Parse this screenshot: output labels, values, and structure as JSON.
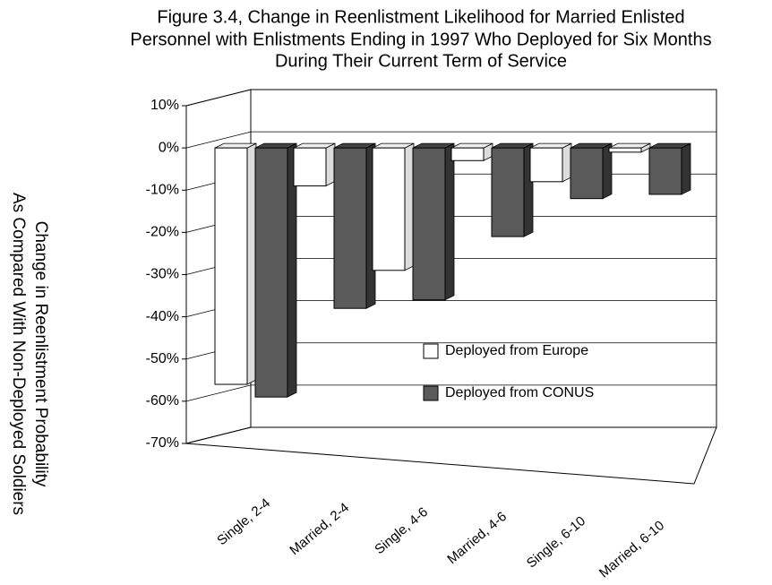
{
  "chart_data": {
    "type": "bar",
    "title": [
      "Figure 3.4, Change in Reenlistment Likelihood for Married Enlisted",
      "Personnel with Enlistments Ending in 1997 Who Deployed for Six Months",
      "During Their Current Term of Service"
    ],
    "y_label": [
      "Change in Reenlistment Probability",
      "As Compared With Non-Deployed Soldiers"
    ],
    "categories": [
      "Single, 2-4",
      "Married, 2-4",
      "Single, 4-6",
      "Married, 4-6",
      "Single, 6-10",
      "Married, 6-10"
    ],
    "series": [
      {
        "name": "Deployed from Europe",
        "color": "#ffffff",
        "values": [
          -56,
          -9,
          -29,
          -3,
          -8,
          -1
        ]
      },
      {
        "name": "Deployed from CONUS",
        "color": "#5a5a5a",
        "values": [
          -59,
          -38,
          -36,
          -21,
          -12,
          -11
        ]
      }
    ],
    "ylim": [
      -70,
      10
    ],
    "yticks": [
      {
        "value": 10,
        "label": "10%"
      },
      {
        "value": 0,
        "label": "0%"
      },
      {
        "value": -10,
        "label": "-10%"
      },
      {
        "value": -20,
        "label": "-20%"
      },
      {
        "value": -30,
        "label": "-30%"
      },
      {
        "value": -40,
        "label": "-40%"
      },
      {
        "value": -50,
        "label": "-50%"
      },
      {
        "value": -60,
        "label": "-60%"
      },
      {
        "value": -70,
        "label": "-70%"
      }
    ],
    "grid": true
  }
}
